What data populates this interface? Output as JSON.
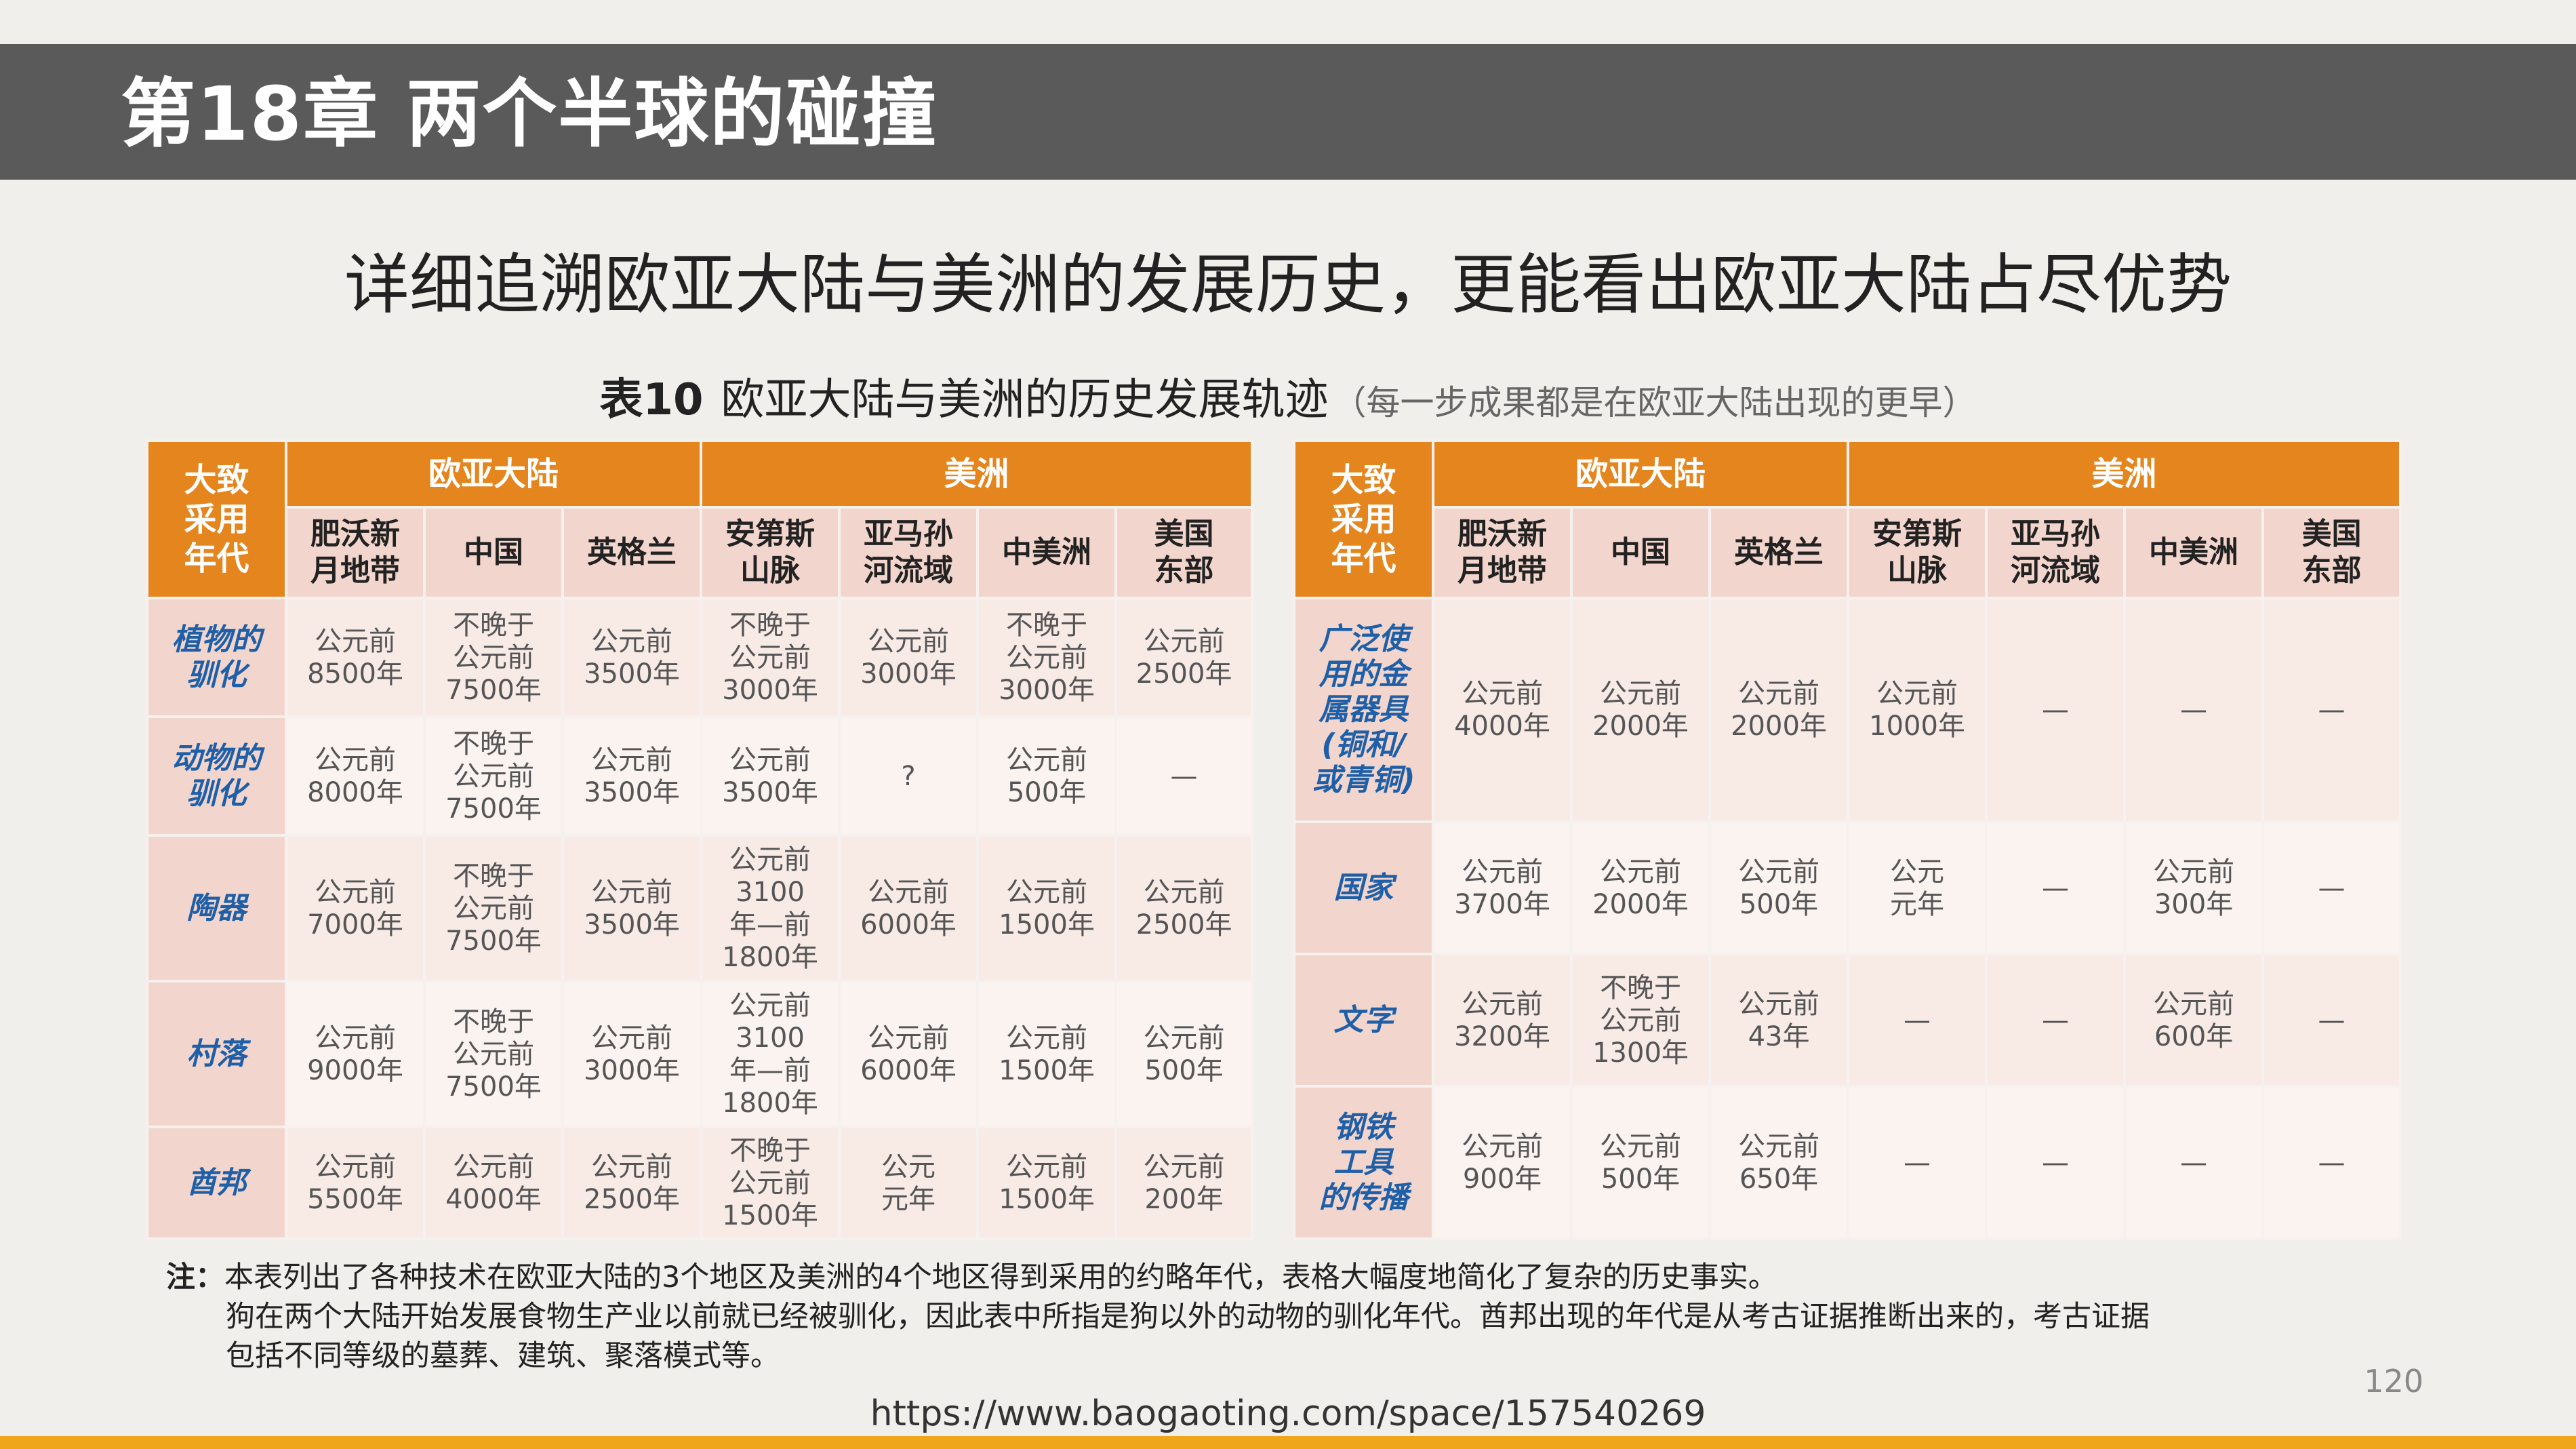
{
  "header": {
    "title": "第18章  两个半球的碰撞"
  },
  "headline": "详细追溯欧亚大陆与美洲的发展历史，更能看出欧亚大陆占尽优势",
  "caption": {
    "number": "表10",
    "title": "欧亚大陆与美洲的历史发展轨迹",
    "subtitle": "（每一步成果都是在欧亚大陆出现的更早）"
  },
  "tables": {
    "left": {
      "corner": "大致\n采用\n年代",
      "groups": [
        "欧亚大陆",
        "美洲"
      ],
      "columns": [
        "肥沃新\n月地带",
        "中国",
        "英格兰",
        "安第斯\n山脉",
        "亚马孙\n河流域",
        "中美洲",
        "美国\n东部"
      ],
      "rows": [
        {
          "label": "植物的\n驯化",
          "cells": [
            "公元前\n8500年",
            "不晚于\n公元前\n7500年",
            "公元前\n3500年",
            "不晚于\n公元前\n3000年",
            "公元前\n3000年",
            "不晚于\n公元前\n3000年",
            "公元前\n2500年"
          ]
        },
        {
          "label": "动物的\n驯化",
          "cells": [
            "公元前\n8000年",
            "不晚于\n公元前\n7500年",
            "公元前\n3500年",
            "公元前\n3500年",
            "?",
            "公元前\n500年",
            "—"
          ]
        },
        {
          "label": "陶器",
          "cells": [
            "公元前\n7000年",
            "不晚于\n公元前\n7500年",
            "公元前\n3500年",
            "公元前\n3100\n年—前\n1800年",
            "公元前\n6000年",
            "公元前\n1500年",
            "公元前\n2500年"
          ]
        },
        {
          "label": "村落",
          "cells": [
            "公元前\n9000年",
            "不晚于\n公元前\n7500年",
            "公元前\n3000年",
            "公元前\n3100\n年—前\n1800年",
            "公元前\n6000年",
            "公元前\n1500年",
            "公元前\n500年"
          ]
        },
        {
          "label": "酋邦",
          "cells": [
            "公元前\n5500年",
            "公元前\n4000年",
            "公元前\n2500年",
            "不晚于\n公元前\n1500年",
            "公元\n元年",
            "公元前\n1500年",
            "公元前\n200年"
          ]
        }
      ]
    },
    "right": {
      "corner": "大致\n采用\n年代",
      "groups": [
        "欧亚大陆",
        "美洲"
      ],
      "columns": [
        "肥沃新\n月地带",
        "中国",
        "英格兰",
        "安第斯\n山脉",
        "亚马孙\n河流域",
        "中美洲",
        "美国\n东部"
      ],
      "rows": [
        {
          "label": "广泛使\n用的金\n属器具\n(铜和/\n或青铜)",
          "cells": [
            "公元前\n4000年",
            "公元前\n2000年",
            "公元前\n2000年",
            "公元前\n1000年",
            "—",
            "—",
            "—"
          ]
        },
        {
          "label": "国家",
          "cells": [
            "公元前\n3700年",
            "公元前\n2000年",
            "公元前\n500年",
            "公元\n元年",
            "—",
            "公元前\n300年",
            "—"
          ]
        },
        {
          "label": "文字",
          "cells": [
            "公元前\n3200年",
            "不晚于\n公元前\n1300年",
            "公元前\n43年",
            "—",
            "—",
            "公元前\n600年",
            "—"
          ]
        },
        {
          "label": "钢铁\n工具\n的传播",
          "cells": [
            "公元前\n900年",
            "公元前\n500年",
            "公元前\n650年",
            "—",
            "—",
            "—",
            "—"
          ]
        }
      ]
    }
  },
  "note": {
    "label": "注：",
    "line1": "本表列出了各种技术在欧亚大陆的3个地区及美洲的4个地区得到采用的约略年代，表格大幅度地简化了复杂的历史事实。",
    "line2": "狗在两个大陆开始发展食物生产业以前就已经被驯化，因此表中所指是狗以外的动物的驯化年代。酋邦出现的年代是从考古证据推断出来的，考古证据",
    "line3": "包括不同等级的墓葬、建筑、聚落模式等。"
  },
  "page_number": "120",
  "source_url": "https://www.baogaoting.com/space/157540269",
  "colors": {
    "banner": "#5a5a5a",
    "header_orange": "#e5851e",
    "row_label_blue": "#1f5fa8",
    "bottom_bar": "#f0a61a"
  }
}
